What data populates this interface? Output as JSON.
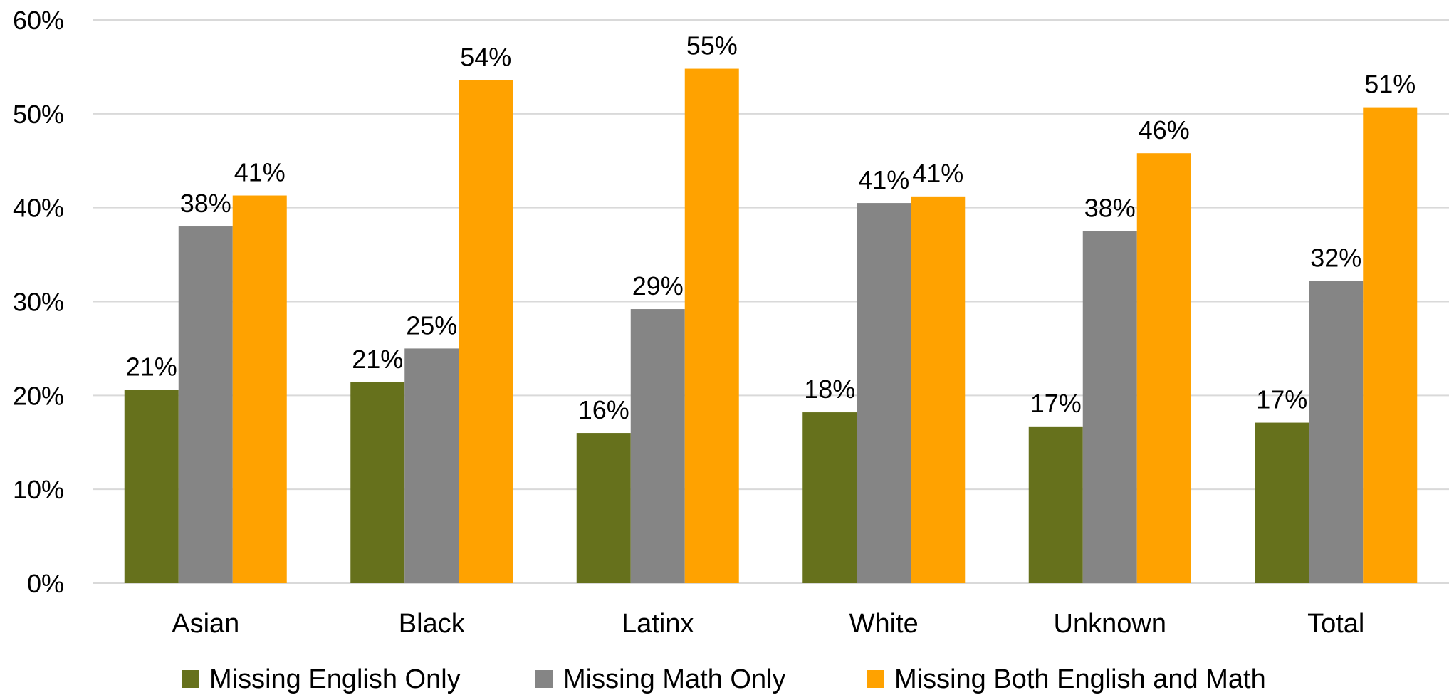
{
  "chart_data": {
    "type": "bar",
    "categories": [
      "Asian",
      "Black",
      "Latinx",
      "White",
      "Unknown",
      "Total"
    ],
    "series": [
      {
        "name": "Missing English Only",
        "color": "#66711c",
        "values": [
          20.6,
          21.4,
          16.0,
          18.2,
          16.7,
          17.1
        ],
        "labels": [
          "21%",
          "21%",
          "16%",
          "18%",
          "17%",
          "17%"
        ]
      },
      {
        "name": "Missing Math Only",
        "color": "#858585",
        "values": [
          38.0,
          25.0,
          29.2,
          40.5,
          37.5,
          32.2
        ],
        "labels": [
          "38%",
          "25%",
          "29%",
          "41%",
          "38%",
          "32%"
        ]
      },
      {
        "name": "Missing Both English and Math",
        "color": "#ffa200",
        "values": [
          41.3,
          53.6,
          54.8,
          41.2,
          45.8,
          50.7
        ],
        "labels": [
          "41%",
          "54%",
          "55%",
          "41%",
          "46%",
          "51%"
        ]
      }
    ],
    "y_ticks": [
      "0%",
      "10%",
      "20%",
      "30%",
      "40%",
      "50%",
      "60%"
    ],
    "ylim": [
      0,
      60
    ],
    "grid": true,
    "legend_position": "bottom"
  }
}
